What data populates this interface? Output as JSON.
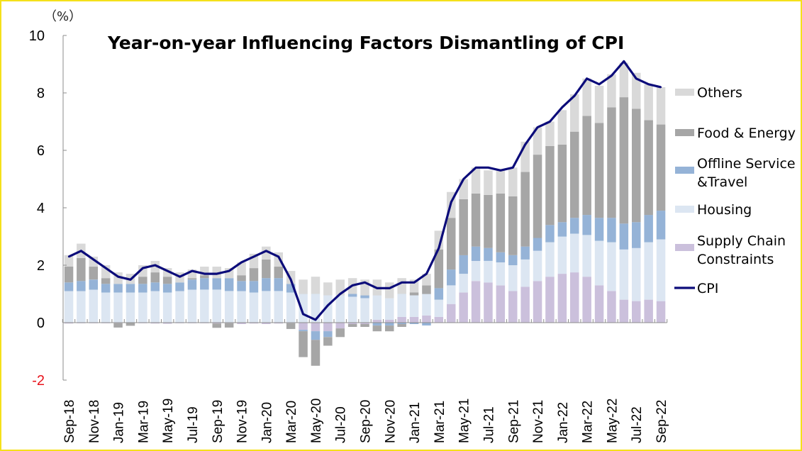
{
  "chart_data": {
    "type": "bar",
    "stacked": true,
    "title": "Year-on-year Influencing Factors Dismantling of CPI",
    "unit_label": "（%）",
    "xlabel": "",
    "ylabel": "%",
    "ylim": [
      -2,
      10
    ],
    "yticks": [
      -2,
      0,
      2,
      4,
      6,
      8,
      10
    ],
    "grid": false,
    "legend_position": "right",
    "categories": [
      "Sep-18",
      "Oct-18",
      "Nov-18",
      "Dec-18",
      "Jan-19",
      "Feb-19",
      "Mar-19",
      "Apr-19",
      "May-19",
      "Jun-19",
      "Jul-19",
      "Aug-19",
      "Sep-19",
      "Oct-19",
      "Nov-19",
      "Dec-19",
      "Jan-20",
      "Feb-20",
      "Mar-20",
      "Apr-20",
      "May-20",
      "Jun-20",
      "Jul-20",
      "Aug-20",
      "Sep-20",
      "Oct-20",
      "Nov-20",
      "Dec-20",
      "Jan-21",
      "Feb-21",
      "Mar-21",
      "Apr-21",
      "May-21",
      "Jun-21",
      "Jul-21",
      "Aug-21",
      "Sep-21",
      "Oct-21",
      "Nov-21",
      "Dec-21",
      "Jan-22",
      "Feb-22",
      "Mar-22",
      "Apr-22",
      "May-22",
      "Jun-22",
      "Jul-22",
      "Aug-22",
      "Sep-22"
    ],
    "xtick_labels": [
      "Sep-18",
      "Nov-18",
      "Jan-19",
      "Mar-19",
      "May-19",
      "Jul-19",
      "Sep-19",
      "Nov-19",
      "Jan-20",
      "Mar-20",
      "May-20",
      "Jul-20",
      "Sep-20",
      "Nov-20",
      "Jan-21",
      "Mar-21",
      "May-21",
      "Jul-21",
      "Sep-21",
      "Nov-21",
      "Jan-22",
      "Mar-22",
      "May-22",
      "Jul-22",
      "Sep-22"
    ],
    "series": [
      {
        "name": "Supply Chain Constraints",
        "color": "#cbc0dc",
        "kind": "bar",
        "values": [
          -0.03,
          -0.02,
          -0.02,
          -0.01,
          -0.02,
          -0.01,
          -0.02,
          -0.03,
          -0.04,
          -0.01,
          -0.01,
          -0.01,
          -0.03,
          -0.02,
          -0.05,
          -0.03,
          -0.05,
          -0.03,
          -0.02,
          -0.25,
          -0.3,
          -0.3,
          -0.2,
          -0.05,
          -0.05,
          0.1,
          0.1,
          0.2,
          0.2,
          0.25,
          0.2,
          0.65,
          1.05,
          1.45,
          1.4,
          1.3,
          1.1,
          1.25,
          1.45,
          1.6,
          1.7,
          1.75,
          1.6,
          1.3,
          1.1,
          0.8,
          0.75,
          0.8,
          0.75
        ]
      },
      {
        "name": "Housing",
        "color": "#dce6f2",
        "kind": "bar",
        "values": [
          1.1,
          1.1,
          1.15,
          1.05,
          1.05,
          1.05,
          1.05,
          1.1,
          1.05,
          1.1,
          1.15,
          1.15,
          1.15,
          1.1,
          1.1,
          1.05,
          1.1,
          1.1,
          1.05,
          1.0,
          1.0,
          0.95,
          0.95,
          0.9,
          0.85,
          0.85,
          0.75,
          0.8,
          0.75,
          0.75,
          0.6,
          0.65,
          0.65,
          0.7,
          0.75,
          0.8,
          0.9,
          0.95,
          1.05,
          1.2,
          1.3,
          1.35,
          1.45,
          1.55,
          1.7,
          1.75,
          1.85,
          2.0,
          2.15
        ]
      },
      {
        "name": "Offline Service &Travel",
        "color": "#95b3d7",
        "kind": "bar",
        "values": [
          0.3,
          0.35,
          0.35,
          0.3,
          0.3,
          0.3,
          0.3,
          0.3,
          0.3,
          0.3,
          0.35,
          0.4,
          0.4,
          0.45,
          0.35,
          0.4,
          0.45,
          0.45,
          0.3,
          -0.05,
          -0.3,
          -0.2,
          0.0,
          0.1,
          0.1,
          -0.1,
          -0.1,
          -0.05,
          -0.05,
          -0.1,
          0.4,
          0.55,
          0.65,
          0.5,
          0.45,
          0.35,
          0.35,
          0.45,
          0.45,
          0.6,
          0.5,
          0.55,
          0.7,
          0.8,
          0.85,
          0.9,
          0.9,
          0.95,
          1.0
        ]
      },
      {
        "name": "Food & Energy",
        "color": "#a6a6a6",
        "kind": "bar",
        "values": [
          0.55,
          0.8,
          0.45,
          0.2,
          -0.15,
          -0.1,
          0.25,
          0.35,
          0.25,
          0.0,
          0.05,
          0.1,
          -0.15,
          -0.15,
          0.2,
          0.45,
          0.65,
          0.4,
          -0.2,
          -0.9,
          -0.9,
          -0.3,
          -0.3,
          -0.1,
          -0.1,
          -0.2,
          -0.2,
          -0.1,
          0.1,
          0.3,
          1.35,
          1.8,
          1.95,
          1.85,
          1.85,
          2.05,
          2.05,
          2.6,
          2.9,
          2.75,
          2.7,
          3.0,
          3.45,
          3.3,
          3.85,
          4.4,
          3.95,
          3.3,
          3.0
        ]
      },
      {
        "name": "Others",
        "color": "#d9d9d9",
        "kind": "bar",
        "values": [
          0.4,
          0.5,
          0.35,
          0.45,
          0.4,
          0.35,
          0.4,
          0.4,
          0.3,
          0.35,
          0.3,
          0.3,
          0.4,
          0.35,
          0.45,
          0.5,
          0.45,
          0.5,
          0.45,
          0.5,
          0.6,
          0.45,
          0.55,
          0.55,
          0.55,
          0.55,
          0.55,
          0.55,
          0.45,
          0.4,
          0.65,
          0.9,
          0.7,
          0.9,
          0.85,
          0.85,
          1.0,
          1.05,
          0.95,
          0.85,
          1.2,
          1.3,
          1.3,
          1.3,
          1.15,
          1.2,
          1.25,
          1.25,
          1.3
        ]
      },
      {
        "name": "CPI",
        "color": "#0c0c7a",
        "kind": "line",
        "values": [
          2.3,
          2.5,
          2.2,
          1.9,
          1.6,
          1.5,
          1.9,
          2.0,
          1.8,
          1.6,
          1.8,
          1.7,
          1.7,
          1.8,
          2.1,
          2.3,
          2.5,
          2.3,
          1.5,
          0.3,
          0.1,
          0.6,
          1.0,
          1.3,
          1.4,
          1.2,
          1.2,
          1.4,
          1.4,
          1.7,
          2.6,
          4.2,
          5.0,
          5.4,
          5.4,
          5.3,
          5.4,
          6.2,
          6.8,
          7.0,
          7.5,
          7.9,
          8.5,
          8.3,
          8.6,
          9.1,
          8.5,
          8.3,
          8.2
        ]
      }
    ],
    "legend": [
      "Others",
      "Food & Energy",
      "Offline Service\n&Travel",
      "Housing",
      "Supply Chain\nConstraints",
      "CPI"
    ]
  },
  "colors": {
    "frame_border": "#f5e11a",
    "axis": "#8c8c8c",
    "negative_tick": "#e8141c"
  }
}
